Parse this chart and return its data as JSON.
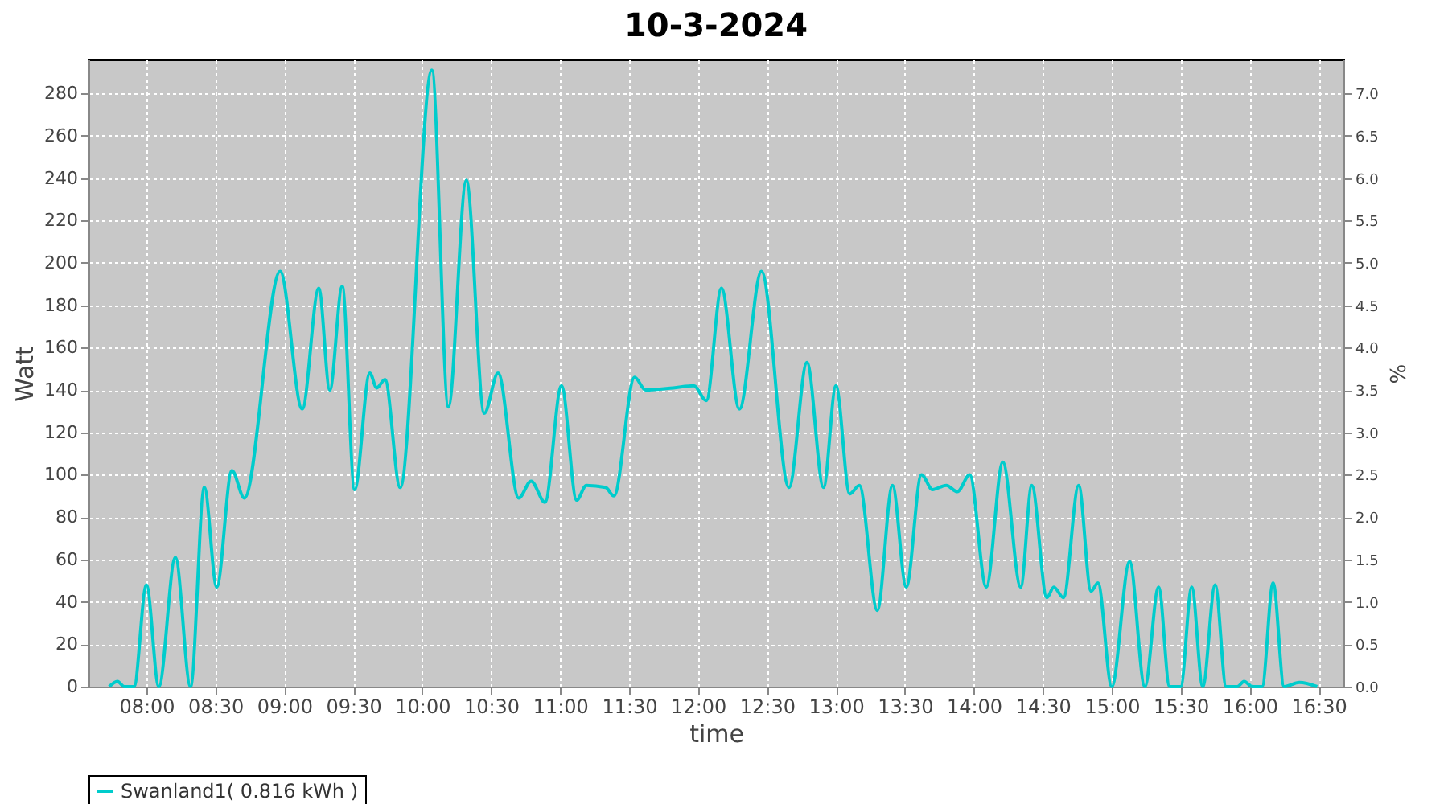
{
  "chart_data": {
    "type": "line",
    "title": "10-3-2024",
    "xlabel": "time",
    "ylabel": "Watt",
    "y2label": "%",
    "x": [
      7.73,
      7.79,
      7.84,
      7.91,
      8.0,
      8.09,
      8.21,
      8.32,
      8.42,
      8.51,
      8.62,
      8.71,
      8.97,
      9.13,
      9.25,
      9.33,
      9.42,
      9.51,
      9.62,
      9.67,
      9.73,
      9.84,
      10.07,
      10.19,
      10.32,
      10.45,
      10.55,
      10.7,
      10.79,
      10.89,
      11.01,
      11.12,
      11.19,
      11.33,
      11.39,
      11.54,
      11.62,
      11.82,
      11.97,
      12.06,
      12.17,
      12.3,
      12.46,
      12.66,
      12.79,
      12.91,
      13.0,
      13.1,
      13.17,
      13.3,
      13.41,
      13.51,
      13.62,
      13.7,
      13.8,
      13.88,
      13.97,
      14.09,
      14.21,
      14.34,
      14.42,
      14.53,
      14.58,
      14.65,
      14.76,
      14.85,
      14.9,
      15.0,
      15.13,
      15.24,
      15.34,
      15.42,
      15.5,
      15.58,
      15.66,
      15.75,
      15.83,
      15.91,
      15.96,
      16.02,
      16.09,
      16.17,
      16.25,
      16.36,
      16.49
    ],
    "series": [
      {
        "name": "Swanland1( 0.816 kWh )",
        "color": "#00cccc",
        "values": [
          0,
          2.5,
          0,
          0,
          48,
          0,
          61,
          0,
          94,
          47,
          102,
          89,
          196,
          131,
          188,
          140,
          189,
          93,
          148,
          141,
          145,
          94,
          291,
          132,
          239,
          129,
          148,
          89,
          97,
          87,
          142,
          88,
          95,
          94,
          90,
          146,
          140,
          141,
          142,
          135,
          188,
          131,
          196,
          94,
          153,
          94,
          142,
          91,
          95,
          36,
          95,
          47,
          100,
          93,
          95,
          92,
          100,
          47,
          106,
          47,
          95,
          42,
          47,
          42,
          95,
          45,
          49,
          0,
          59,
          0,
          47,
          0,
          0,
          47,
          0,
          48,
          0,
          0,
          2.5,
          0,
          0,
          49,
          0,
          2,
          0
        ]
      }
    ],
    "xlim": [
      7.58,
      16.68
    ],
    "xticks": [
      {
        "value": 8,
        "label": "08:00"
      },
      {
        "value": 8.5,
        "label": "08:30"
      },
      {
        "value": 9,
        "label": "09:00"
      },
      {
        "value": 9.5,
        "label": "09:30"
      },
      {
        "value": 10,
        "label": "10:00"
      },
      {
        "value": 10.5,
        "label": "10:30"
      },
      {
        "value": 11,
        "label": "11:00"
      },
      {
        "value": 11.5,
        "label": "11:30"
      },
      {
        "value": 12,
        "label": "12:00"
      },
      {
        "value": 12.5,
        "label": "12:30"
      },
      {
        "value": 13,
        "label": "13:00"
      },
      {
        "value": 13.5,
        "label": "13:30"
      },
      {
        "value": 14,
        "label": "14:00"
      },
      {
        "value": 14.5,
        "label": "14:30"
      },
      {
        "value": 15,
        "label": "15:00"
      },
      {
        "value": 15.5,
        "label": "15:30"
      },
      {
        "value": 16,
        "label": "16:00"
      },
      {
        "value": 16.5,
        "label": "16:30"
      }
    ],
    "ylim": [
      0,
      296
    ],
    "yticks": [
      0,
      20,
      40,
      60,
      80,
      100,
      120,
      140,
      160,
      180,
      200,
      220,
      240,
      260,
      280
    ],
    "y2lim": [
      0,
      7.4
    ],
    "y2ticks": [
      {
        "value": 0,
        "label": "0.0"
      },
      {
        "value": 0.5,
        "label": "0.5"
      },
      {
        "value": 1,
        "label": "1.0"
      },
      {
        "value": 1.5,
        "label": "1.5"
      },
      {
        "value": 2,
        "label": "2.0"
      },
      {
        "value": 2.5,
        "label": "2.5"
      },
      {
        "value": 3,
        "label": "3.0"
      },
      {
        "value": 3.5,
        "label": "3.5"
      },
      {
        "value": 4,
        "label": "4.0"
      },
      {
        "value": 4.5,
        "label": "4.5"
      },
      {
        "value": 5,
        "label": "5.0"
      },
      {
        "value": 5.5,
        "label": "5.5"
      },
      {
        "value": 6,
        "label": "6.0"
      },
      {
        "value": 6.5,
        "label": "6.5"
      },
      {
        "value": 7,
        "label": "7.0"
      }
    ],
    "grid": true,
    "legend": "bottom",
    "marker": "none",
    "line_style": "solid"
  }
}
